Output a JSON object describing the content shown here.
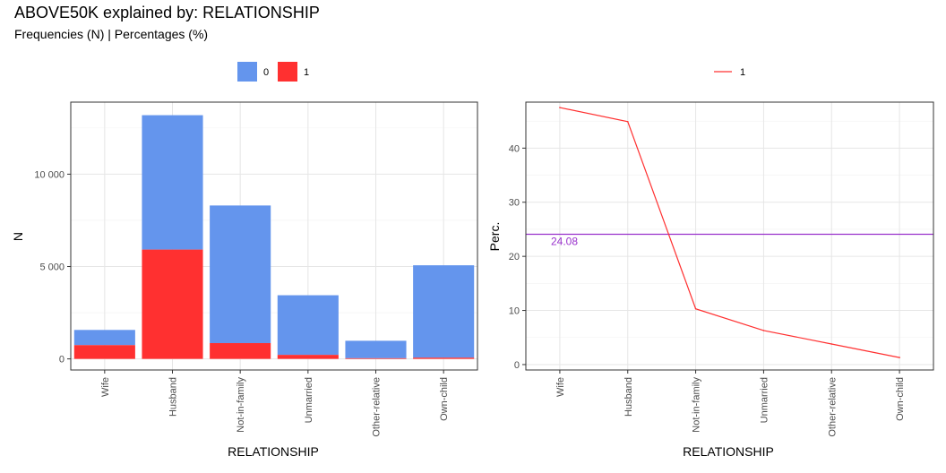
{
  "header": {
    "title": "ABOVE50K explained by: RELATIONSHIP",
    "subtitle": "Frequencies (N) | Percentages (%)"
  },
  "chart_data": [
    {
      "type": "bar",
      "stacked": true,
      "categories": [
        "Wife",
        "Husband",
        "Not-in-family",
        "Unmarried",
        "Other-relative",
        "Own-child"
      ],
      "series": [
        {
          "name": "0",
          "color": "#6495ED",
          "values": [
            823,
            7275,
            7449,
            3228,
            944,
            5001
          ]
        },
        {
          "name": "1",
          "color": "#FF3030",
          "values": [
            745,
            5918,
            856,
            218,
            37,
            67
          ]
        }
      ],
      "xlabel": "RELATIONSHIP",
      "ylabel": "N",
      "yticks": [
        0,
        5000,
        10000
      ],
      "ytick_labels": [
        "0",
        "5 000",
        "10 000"
      ],
      "ylim": [
        -600,
        13900
      ],
      "legend": {
        "position": "top",
        "entries": [
          "0",
          "1"
        ]
      },
      "grid": true
    },
    {
      "type": "line",
      "categories": [
        "Wife",
        "Husband",
        "Not-in-family",
        "Unmarried",
        "Other-relative",
        "Own-child"
      ],
      "series": [
        {
          "name": "1",
          "color": "#FF3030",
          "values": [
            47.5,
            44.9,
            10.3,
            6.3,
            3.8,
            1.3
          ]
        }
      ],
      "reference_line": {
        "value": 24.08,
        "label": "24.08",
        "color": "#9932CC"
      },
      "xlabel": "RELATIONSHIP",
      "ylabel": "Perc.",
      "yticks": [
        0,
        10,
        20,
        30,
        40
      ],
      "ytick_labels": [
        "0",
        "10",
        "20",
        "30",
        "40"
      ],
      "ylim": [
        -1,
        48.5
      ],
      "legend": {
        "position": "top",
        "entries": [
          "1"
        ]
      },
      "grid": true
    }
  ]
}
